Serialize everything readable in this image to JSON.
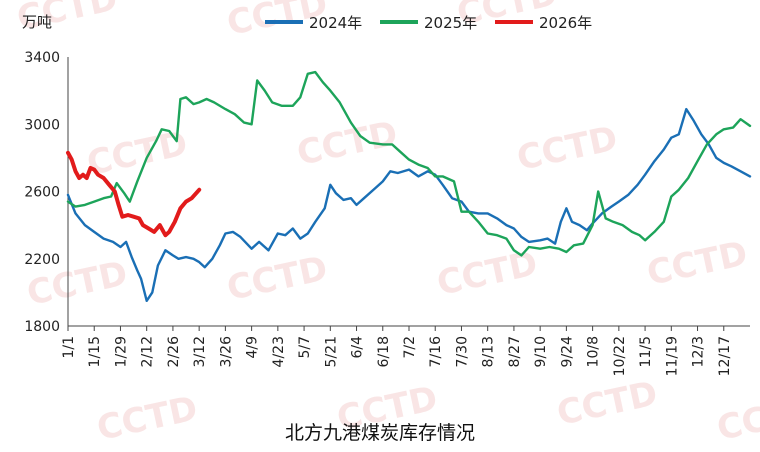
{
  "caption": "北方九港煤炭库存情况",
  "watermark": "CCTD",
  "chart_data": {
    "type": "line",
    "ylabel": "万吨",
    "ylim": [
      1800,
      3400
    ],
    "yticks": [
      1800,
      2200,
      2600,
      3000,
      3400
    ],
    "x_start": "1/1",
    "x_end": "12/31",
    "x_ticks": [
      "1/1",
      "1/15",
      "1/29",
      "2/12",
      "2/26",
      "3/12",
      "3/26",
      "4/9",
      "4/23",
      "5/7",
      "5/21",
      "6/4",
      "6/18",
      "7/2",
      "7/16",
      "7/30",
      "8/13",
      "8/27",
      "9/10",
      "9/24",
      "10/8",
      "10/22",
      "11/5",
      "11/19",
      "12/3",
      "12/17"
    ],
    "legend_position": "top",
    "grid": false,
    "series": [
      {
        "name": "2024年",
        "color": "#1a6fb5",
        "points": [
          [
            "1/1",
            2580
          ],
          [
            "1/5",
            2470
          ],
          [
            "1/10",
            2400
          ],
          [
            "1/15",
            2360
          ],
          [
            "1/20",
            2320
          ],
          [
            "1/25",
            2300
          ],
          [
            "1/29",
            2270
          ],
          [
            "2/1",
            2300
          ],
          [
            "2/4",
            2210
          ],
          [
            "2/7",
            2130
          ],
          [
            "2/9",
            2080
          ],
          [
            "2/12",
            1950
          ],
          [
            "2/15",
            2000
          ],
          [
            "2/18",
            2160
          ],
          [
            "2/22",
            2250
          ],
          [
            "2/26",
            2220
          ],
          [
            "3/1",
            2200
          ],
          [
            "3/5",
            2210
          ],
          [
            "3/9",
            2200
          ],
          [
            "3/12",
            2180
          ],
          [
            "3/15",
            2150
          ],
          [
            "3/19",
            2200
          ],
          [
            "3/23",
            2280
          ],
          [
            "3/26",
            2350
          ],
          [
            "3/30",
            2360
          ],
          [
            "4/3",
            2330
          ],
          [
            "4/9",
            2260
          ],
          [
            "4/13",
            2300
          ],
          [
            "4/18",
            2250
          ],
          [
            "4/23",
            2350
          ],
          [
            "4/27",
            2340
          ],
          [
            "5/1",
            2380
          ],
          [
            "5/5",
            2320
          ],
          [
            "5/9",
            2350
          ],
          [
            "5/13",
            2420
          ],
          [
            "5/18",
            2500
          ],
          [
            "5/21",
            2640
          ],
          [
            "5/24",
            2590
          ],
          [
            "5/28",
            2550
          ],
          [
            "6/1",
            2560
          ],
          [
            "6/4",
            2520
          ],
          [
            "6/8",
            2560
          ],
          [
            "6/14",
            2620
          ],
          [
            "6/18",
            2660
          ],
          [
            "6/22",
            2720
          ],
          [
            "6/26",
            2710
          ],
          [
            "7/2",
            2730
          ],
          [
            "7/7",
            2690
          ],
          [
            "7/12",
            2720
          ],
          [
            "7/16",
            2700
          ],
          [
            "7/20",
            2640
          ],
          [
            "7/25",
            2560
          ],
          [
            "7/30",
            2540
          ],
          [
            "8/3",
            2480
          ],
          [
            "8/8",
            2470
          ],
          [
            "8/13",
            2470
          ],
          [
            "8/18",
            2440
          ],
          [
            "8/23",
            2400
          ],
          [
            "8/27",
            2380
          ],
          [
            "8/31",
            2330
          ],
          [
            "9/4",
            2300
          ],
          [
            "9/10",
            2310
          ],
          [
            "9/14",
            2320
          ],
          [
            "9/18",
            2290
          ],
          [
            "9/21",
            2420
          ],
          [
            "9/24",
            2500
          ],
          [
            "9/27",
            2420
          ],
          [
            "10/1",
            2400
          ],
          [
            "10/5",
            2370
          ],
          [
            "10/8",
            2410
          ],
          [
            "10/13",
            2470
          ],
          [
            "10/18",
            2510
          ],
          [
            "10/22",
            2540
          ],
          [
            "10/27",
            2580
          ],
          [
            "11/1",
            2640
          ],
          [
            "11/5",
            2700
          ],
          [
            "11/10",
            2780
          ],
          [
            "11/15",
            2850
          ],
          [
            "11/19",
            2920
          ],
          [
            "11/23",
            2940
          ],
          [
            "11/27",
            3090
          ],
          [
            "12/1",
            3020
          ],
          [
            "12/5",
            2940
          ],
          [
            "12/9",
            2880
          ],
          [
            "12/13",
            2800
          ],
          [
            "12/17",
            2770
          ],
          [
            "12/21",
            2750
          ],
          [
            "12/26",
            2720
          ],
          [
            "12/31",
            2690
          ]
        ]
      },
      {
        "name": "2025年",
        "color": "#1da45a",
        "points": [
          [
            "1/1",
            2540
          ],
          [
            "1/5",
            2510
          ],
          [
            "1/10",
            2520
          ],
          [
            "1/15",
            2540
          ],
          [
            "1/20",
            2560
          ],
          [
            "1/24",
            2570
          ],
          [
            "1/27",
            2650
          ],
          [
            "1/31",
            2590
          ],
          [
            "2/3",
            2540
          ],
          [
            "2/7",
            2660
          ],
          [
            "2/12",
            2800
          ],
          [
            "2/17",
            2900
          ],
          [
            "2/20",
            2970
          ],
          [
            "2/24",
            2960
          ],
          [
            "2/28",
            2900
          ],
          [
            "3/2",
            3150
          ],
          [
            "3/5",
            3160
          ],
          [
            "3/9",
            3120
          ],
          [
            "3/12",
            3130
          ],
          [
            "3/16",
            3150
          ],
          [
            "3/20",
            3130
          ],
          [
            "3/26",
            3090
          ],
          [
            "3/31",
            3060
          ],
          [
            "4/5",
            3010
          ],
          [
            "4/9",
            3000
          ],
          [
            "4/12",
            3260
          ],
          [
            "4/16",
            3200
          ],
          [
            "4/20",
            3130
          ],
          [
            "4/25",
            3110
          ],
          [
            "5/1",
            3110
          ],
          [
            "5/5",
            3160
          ],
          [
            "5/9",
            3300
          ],
          [
            "5/13",
            3310
          ],
          [
            "5/17",
            3250
          ],
          [
            "5/21",
            3200
          ],
          [
            "5/26",
            3130
          ],
          [
            "6/1",
            3010
          ],
          [
            "6/6",
            2930
          ],
          [
            "6/11",
            2890
          ],
          [
            "6/18",
            2880
          ],
          [
            "6/23",
            2880
          ],
          [
            "6/27",
            2840
          ],
          [
            "7/2",
            2790
          ],
          [
            "7/7",
            2760
          ],
          [
            "7/12",
            2740
          ],
          [
            "7/16",
            2690
          ],
          [
            "7/20",
            2690
          ],
          [
            "7/26",
            2660
          ],
          [
            "7/30",
            2480
          ],
          [
            "8/3",
            2480
          ],
          [
            "8/8",
            2420
          ],
          [
            "8/13",
            2350
          ],
          [
            "8/18",
            2340
          ],
          [
            "8/23",
            2320
          ],
          [
            "8/27",
            2250
          ],
          [
            "8/31",
            2220
          ],
          [
            "9/4",
            2270
          ],
          [
            "9/10",
            2260
          ],
          [
            "9/15",
            2270
          ],
          [
            "9/20",
            2260
          ],
          [
            "9/24",
            2240
          ],
          [
            "9/28",
            2280
          ],
          [
            "10/3",
            2290
          ],
          [
            "10/8",
            2400
          ],
          [
            "10/11",
            2600
          ],
          [
            "10/15",
            2440
          ],
          [
            "10/19",
            2420
          ],
          [
            "10/24",
            2400
          ],
          [
            "10/29",
            2360
          ],
          [
            "11/2",
            2340
          ],
          [
            "11/5",
            2310
          ],
          [
            "11/10",
            2360
          ],
          [
            "11/15",
            2420
          ],
          [
            "11/19",
            2570
          ],
          [
            "11/23",
            2610
          ],
          [
            "11/28",
            2680
          ],
          [
            "12/3",
            2780
          ],
          [
            "12/8",
            2880
          ],
          [
            "12/13",
            2940
          ],
          [
            "12/17",
            2970
          ],
          [
            "12/22",
            2980
          ],
          [
            "12/26",
            3030
          ],
          [
            "12/31",
            2990
          ]
        ]
      },
      {
        "name": "2026年",
        "color": "#e21b1b",
        "points": [
          [
            "1/1",
            2830
          ],
          [
            "1/3",
            2790
          ],
          [
            "1/5",
            2720
          ],
          [
            "1/7",
            2680
          ],
          [
            "1/9",
            2700
          ],
          [
            "1/11",
            2680
          ],
          [
            "1/13",
            2740
          ],
          [
            "1/15",
            2730
          ],
          [
            "1/17",
            2700
          ],
          [
            "1/20",
            2680
          ],
          [
            "1/23",
            2640
          ],
          [
            "1/26",
            2600
          ],
          [
            "1/28",
            2520
          ],
          [
            "1/30",
            2450
          ],
          [
            "2/2",
            2460
          ],
          [
            "2/5",
            2450
          ],
          [
            "2/8",
            2440
          ],
          [
            "2/10",
            2400
          ],
          [
            "2/13",
            2380
          ],
          [
            "2/16",
            2360
          ],
          [
            "2/19",
            2400
          ],
          [
            "2/22",
            2340
          ],
          [
            "2/24",
            2360
          ],
          [
            "2/27",
            2420
          ],
          [
            "3/2",
            2500
          ],
          [
            "3/5",
            2540
          ],
          [
            "3/8",
            2560
          ],
          [
            "3/12",
            2610
          ]
        ]
      }
    ]
  }
}
